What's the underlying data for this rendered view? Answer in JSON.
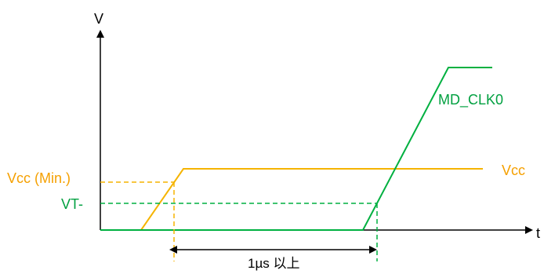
{
  "axes": {
    "y_label": "V",
    "x_label": "t"
  },
  "labels": {
    "vcc_min": "Vcc (Min.)",
    "vt_minus": "VT-",
    "vcc": "Vcc",
    "md_clk0": "MD_CLK0",
    "interval": "1µs 以上"
  },
  "colors": {
    "axis": "#000000",
    "vcc_trace": "#f5b400",
    "clk_trace": "#00b040",
    "vcc_label": "#f5a000",
    "clk_label": "#00a040",
    "interval_label": "#000000"
  }
}
